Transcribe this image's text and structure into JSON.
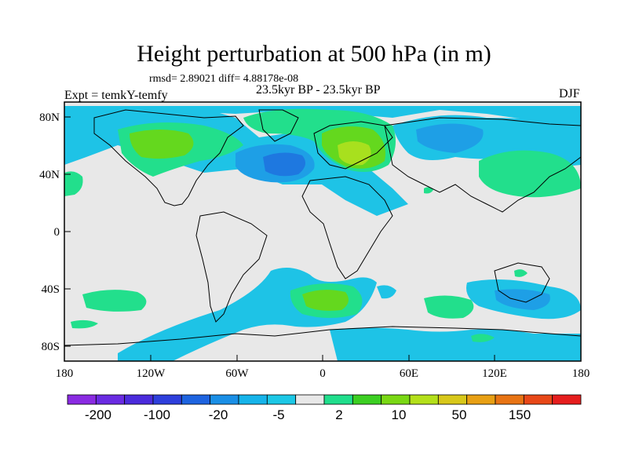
{
  "title": "Height perturbation at 500 hPa (in m)",
  "stats": "rmsd= 2.89021 diff= 4.88178e-08",
  "experiment": "Expt = temkY-temfy",
  "period": "23.5kyr BP - 23.5kyr BP",
  "season": "DJF",
  "axes": {
    "lat_labels": [
      "80N",
      "40N",
      "0",
      "40S",
      "80S"
    ],
    "lon_labels": [
      "180",
      "120W",
      "60W",
      "0",
      "60E",
      "120E",
      "180"
    ]
  },
  "colorbar": {
    "labels": [
      "-200",
      "-100",
      "-20",
      "-5",
      "2",
      "10",
      "50",
      "150"
    ],
    "colors": [
      "#8a2be2",
      "#6a2be2",
      "#4b2bdc",
      "#2e3fdc",
      "#1e64e0",
      "#1a8fe6",
      "#16b4ea",
      "#1cc8e6",
      "#e8e8e8",
      "#20de8c",
      "#3ccf22",
      "#7ad814",
      "#b4e01a",
      "#d8c81a",
      "#e8a014",
      "#e87414",
      "#e84818",
      "#e61e1e"
    ]
  },
  "colors": {
    "background": "#e8e8e8",
    "neg_weak": "#1ec3e6",
    "neg_mid": "#1e9fe6",
    "neg_strong": "#1e78e0",
    "pos_weak": "#22df8c",
    "pos_mid": "#64d81e",
    "pos_strong": "#a8e01e",
    "coast": "#000000"
  }
}
